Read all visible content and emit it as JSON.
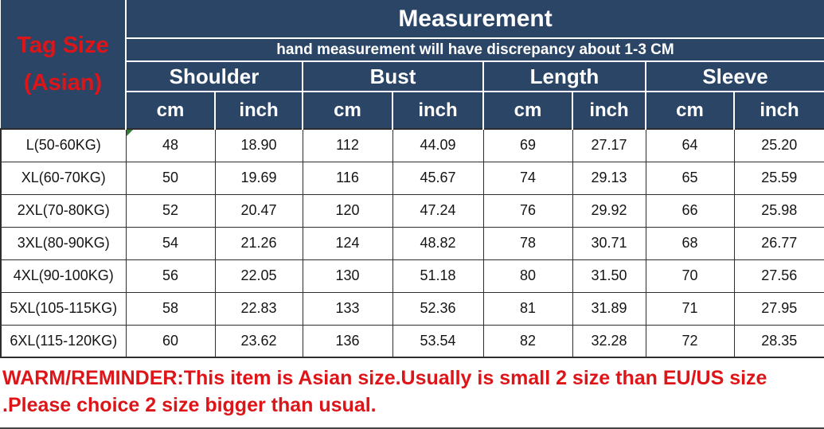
{
  "colors": {
    "header_bg": "#2a4565",
    "accent_red": "#dd1519",
    "grid_dark": "#2d2d2d",
    "indicator_green": "#2e7d32"
  },
  "chart_data": {
    "type": "table",
    "title": "Measurement",
    "subtitle": "hand measurement will have discrepancy about 1-3 CM",
    "corner_label_line1": "Tag Size",
    "corner_label_line2": "(Asian)",
    "column_groups": [
      {
        "label": "Shoulder"
      },
      {
        "label": "Bust"
      },
      {
        "label": "Length"
      },
      {
        "label": "Sleeve"
      }
    ],
    "units": [
      "cm",
      "inch"
    ],
    "rows": [
      {
        "size": "L(50-60KG)",
        "values": [
          "48",
          "18.90",
          "112",
          "44.09",
          "69",
          "27.17",
          "64",
          "25.20"
        ]
      },
      {
        "size": "XL(60-70KG)",
        "values": [
          "50",
          "19.69",
          "116",
          "45.67",
          "74",
          "29.13",
          "65",
          "25.59"
        ]
      },
      {
        "size": "2XL(70-80KG)",
        "values": [
          "52",
          "20.47",
          "120",
          "47.24",
          "76",
          "29.92",
          "66",
          "25.98"
        ]
      },
      {
        "size": "3XL(80-90KG)",
        "values": [
          "54",
          "21.26",
          "124",
          "48.82",
          "78",
          "30.71",
          "68",
          "26.77"
        ]
      },
      {
        "size": "4XL(90-100KG)",
        "values": [
          "56",
          "22.05",
          "130",
          "51.18",
          "80",
          "31.50",
          "70",
          "27.56"
        ]
      },
      {
        "size": "5XL(105-115KG)",
        "values": [
          "58",
          "22.83",
          "133",
          "52.36",
          "81",
          "31.89",
          "71",
          "27.95"
        ]
      },
      {
        "size": "6XL(115-120KG)",
        "values": [
          "60",
          "23.62",
          "136",
          "53.54",
          "82",
          "32.28",
          "72",
          "28.35"
        ]
      }
    ]
  },
  "footer": {
    "warning_line1": "WARM/REMINDER:This item is Asian size.Usually is small 2 size than EU/US size",
    "warning_line2": ".Please choice 2 size bigger than usual."
  }
}
